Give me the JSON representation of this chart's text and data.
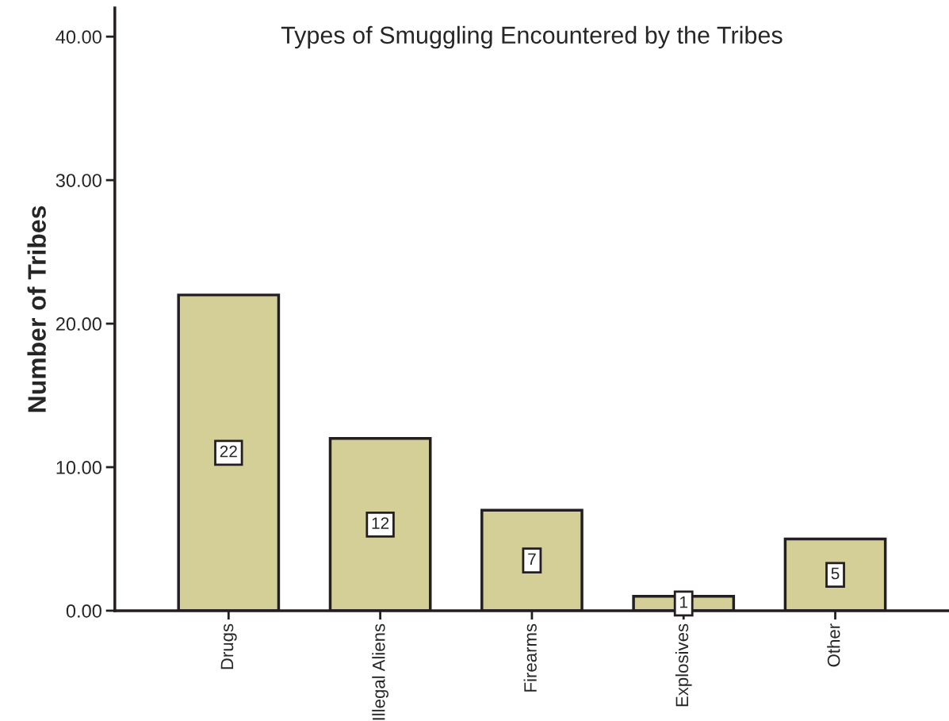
{
  "chart_data": {
    "type": "bar",
    "title": "Types of Smuggling Encountered by the Tribes",
    "ylabel": "Number of Tribes",
    "categories": [
      "Drugs",
      "Illegal Aliens",
      "Firearms",
      "Explosives",
      "Other"
    ],
    "values": [
      22,
      12,
      7,
      1,
      5
    ],
    "color": "#d4cf96",
    "ylim": [
      0,
      42
    ],
    "yticks": [
      {
        "value": 0,
        "label": "0.00"
      },
      {
        "value": 10,
        "label": "10.00"
      },
      {
        "value": 20,
        "label": "20.00"
      },
      {
        "value": 30,
        "label": "30.00"
      },
      {
        "value": 40,
        "label": "40.00"
      }
    ],
    "data_labels": true,
    "grid": false,
    "legend": false
  }
}
